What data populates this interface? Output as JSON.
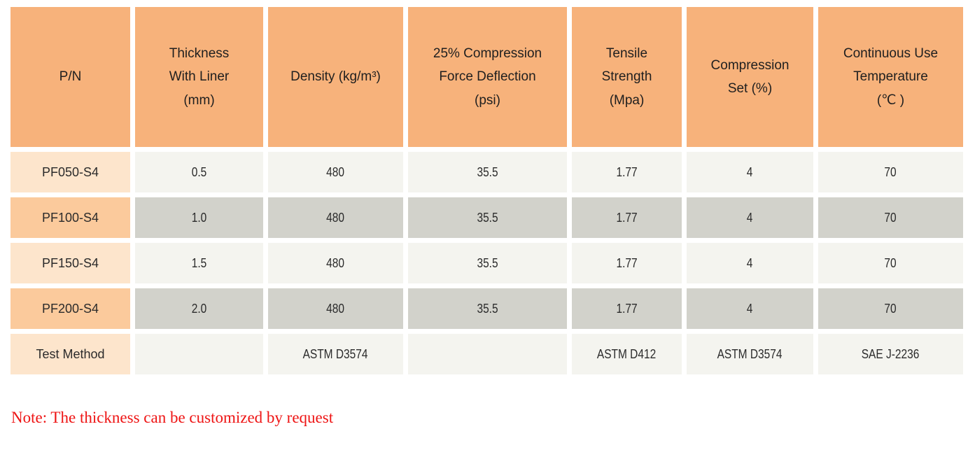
{
  "colors": {
    "header_bg": "#f7b27b",
    "pn_odd_bg": "#fde5cc",
    "pn_even_bg": "#fbca9c",
    "cell_odd_bg": "#f4f4ef",
    "cell_even_bg": "#d2d2cb",
    "note_red": "#ee1414"
  },
  "table": {
    "headers": [
      "P/N",
      "Thickness\nWith Liner\n(mm)",
      "Density (kg/m³)",
      "25% Compression\nForce Deflection\n(psi)",
      "Tensile\nStrength\n(Mpa)",
      "Compression\nSet (%)",
      "Continuous Use\nTemperature\n(℃ )"
    ],
    "rows": [
      {
        "pn": "PF050-S4",
        "values": [
          "0.5",
          "480",
          "35.5",
          "1.77",
          "4",
          "70"
        ]
      },
      {
        "pn": "PF100-S4",
        "values": [
          "1.0",
          "480",
          "35.5",
          "1.77",
          "4",
          "70"
        ]
      },
      {
        "pn": "PF150-S4",
        "values": [
          "1.5",
          "480",
          "35.5",
          "1.77",
          "4",
          "70"
        ]
      },
      {
        "pn": "PF200-S4",
        "values": [
          "2.0",
          "480",
          "35.5",
          "1.77",
          "4",
          "70"
        ]
      },
      {
        "pn": "Test Method",
        "values": [
          "",
          "ASTM D3574",
          "",
          "ASTM D412",
          "ASTM D3574",
          "SAE J-2236"
        ]
      }
    ]
  },
  "note": "Note: The thickness can be customized by request"
}
